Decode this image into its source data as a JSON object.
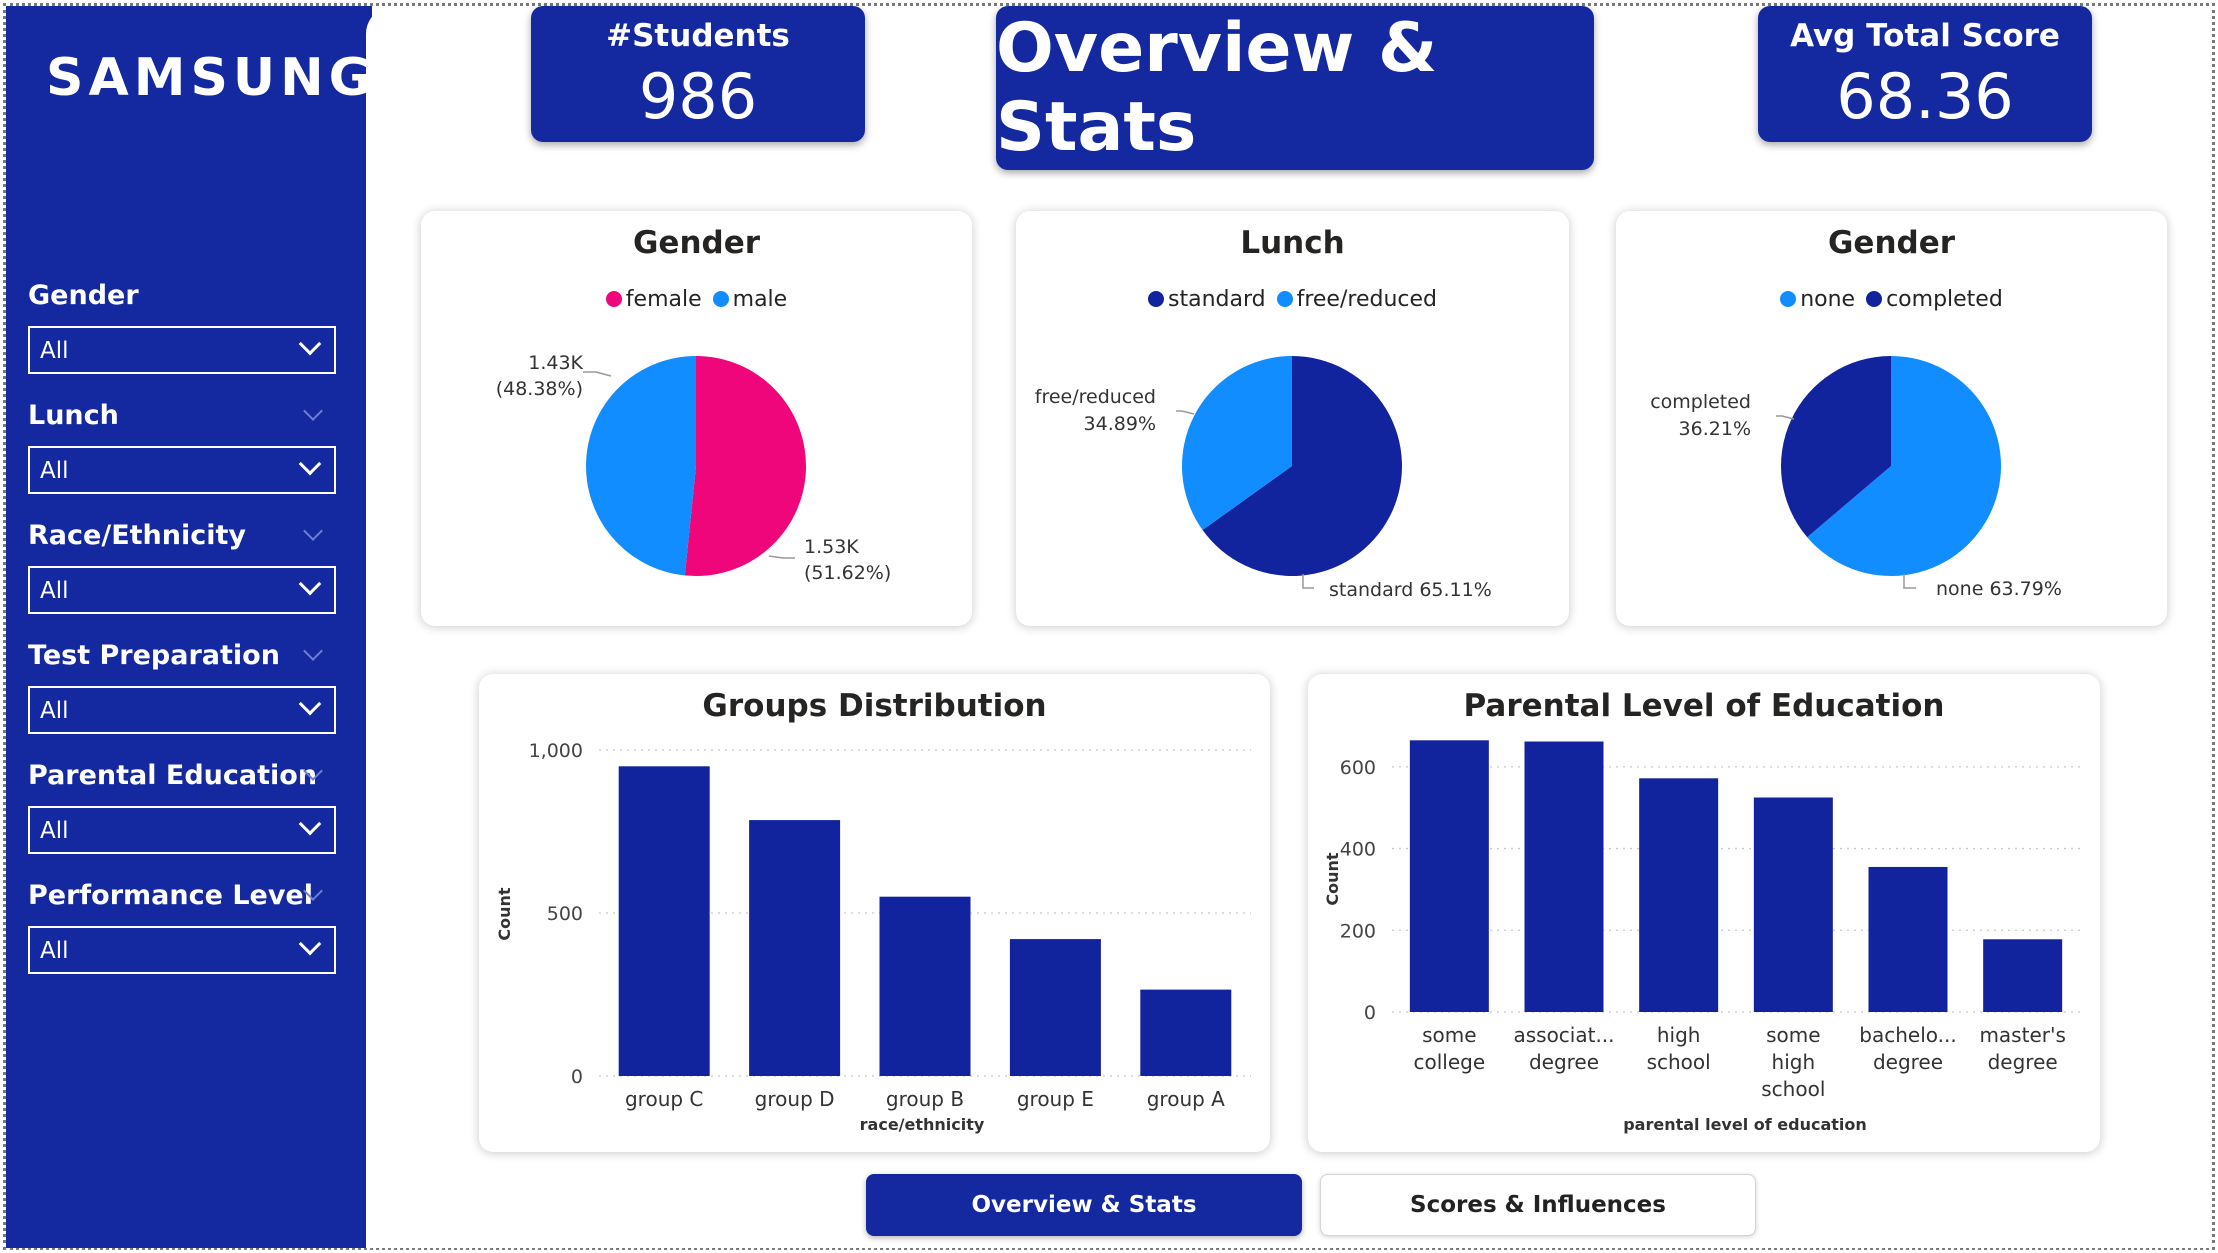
{
  "brand": {
    "logo_text": "SAMSUNG",
    "primary_color": "#1428a0",
    "accent_blue": "#118dff",
    "accent_pink": "#f0067b"
  },
  "sidebar": {
    "filters": [
      {
        "label": "Gender",
        "value": "All"
      },
      {
        "label": "Lunch",
        "value": "All"
      },
      {
        "label": "Race/Ethnicity",
        "value": "All"
      },
      {
        "label": "Test Preparation",
        "value": "All"
      },
      {
        "label": "Parental Education",
        "value": "All"
      },
      {
        "label": "Performance Level",
        "value": "All"
      }
    ]
  },
  "kpis": {
    "students": {
      "title": "#Students",
      "value": "986"
    },
    "page_title": "Overview & Stats",
    "avg_score": {
      "title": "Avg Total Score",
      "value": "68.36"
    }
  },
  "chart_data": [
    {
      "type": "pie",
      "title": "Gender",
      "legend": [
        "female",
        "male"
      ],
      "slices": [
        {
          "label": "female",
          "value": 1530,
          "percent": 51.62,
          "label_text": "1.53K",
          "pct_text": "(51.62%)",
          "color": "#f0067b"
        },
        {
          "label": "male",
          "value": 1430,
          "percent": 48.38,
          "label_text": "1.43K",
          "pct_text": "(48.38%)",
          "color": "#118dff"
        }
      ]
    },
    {
      "type": "pie",
      "title": "Lunch",
      "legend": [
        "standard",
        "free/reduced"
      ],
      "slices": [
        {
          "label": "standard",
          "percent": 65.11,
          "label_text": "standard 65.11%",
          "color": "#12239e"
        },
        {
          "label": "free/reduced",
          "percent": 34.89,
          "label_text": "free/reduced",
          "pct_text": "34.89%",
          "color": "#118dff"
        }
      ]
    },
    {
      "type": "pie",
      "title": "Gender",
      "legend": [
        "none",
        "completed"
      ],
      "slices": [
        {
          "label": "none",
          "percent": 63.79,
          "label_text": "none 63.79%",
          "color": "#118dff"
        },
        {
          "label": "completed",
          "percent": 36.21,
          "label_text": "completed",
          "pct_text": "36.21%",
          "color": "#12239e"
        }
      ]
    },
    {
      "type": "bar",
      "title": "Groups Distribution",
      "xlabel": "race/ethnicity",
      "ylabel": "Count",
      "categories": [
        "group C",
        "group D",
        "group B",
        "group E",
        "group A"
      ],
      "values": [
        950,
        785,
        550,
        420,
        265
      ],
      "ylim": [
        0,
        1000
      ],
      "yticks": [
        "0",
        "500",
        "1,000"
      ],
      "grid": true
    },
    {
      "type": "bar",
      "title": "Parental Level of Education",
      "xlabel": "parental level of education",
      "ylabel": "Count",
      "categories": [
        "some college",
        "associat... degree",
        "high school",
        "some high school",
        "bachelo... degree",
        "master's degree"
      ],
      "values": [
        665,
        662,
        572,
        525,
        355,
        178
      ],
      "ylim": [
        0,
        700
      ],
      "yticks": [
        "0",
        "200",
        "400",
        "600"
      ],
      "grid": true
    }
  ],
  "nav": {
    "active_label": "Overview & Stats",
    "other_label": "Scores & Influences"
  }
}
